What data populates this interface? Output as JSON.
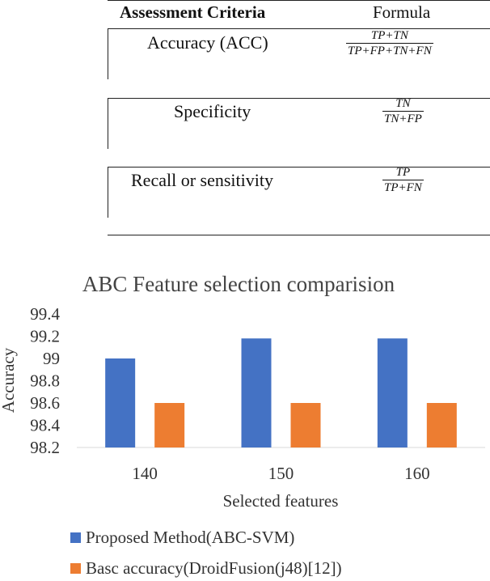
{
  "table": {
    "header_criteria": "Assessment Criteria",
    "header_formula": "Formula",
    "rows": [
      {
        "criteria": "Accuracy (ACC)",
        "numerator": "TP+TN",
        "denominator": "TP+FP+TN+FN"
      },
      {
        "criteria": "Specificity",
        "numerator": "TN",
        "denominator": "TN+FP"
      },
      {
        "criteria": "Recall or sensitivity",
        "numerator": "TP",
        "denominator": "TP+FN"
      }
    ]
  },
  "chart_data": {
    "type": "bar",
    "title": "ABC Feature selection comparision",
    "xlabel": "Selected features",
    "ylabel": "Accuracy",
    "categories": [
      "140",
      "150",
      "160"
    ],
    "ylim": [
      98.2,
      99.4
    ],
    "yticks": [
      "98.2",
      "98.4",
      "98.6",
      "98.8",
      "99",
      "99.2",
      "99.4"
    ],
    "grid": false,
    "legend_position": "bottom",
    "series": [
      {
        "name": "Proposed Method(ABC-SVM)",
        "color": "#4472C4",
        "values": [
          99.0,
          99.18,
          99.18
        ]
      },
      {
        "name": "Basc accuracy(DroidFusion(j48)[12])",
        "color": "#ED7D31",
        "values": [
          98.6,
          98.6,
          98.6
        ]
      }
    ]
  }
}
